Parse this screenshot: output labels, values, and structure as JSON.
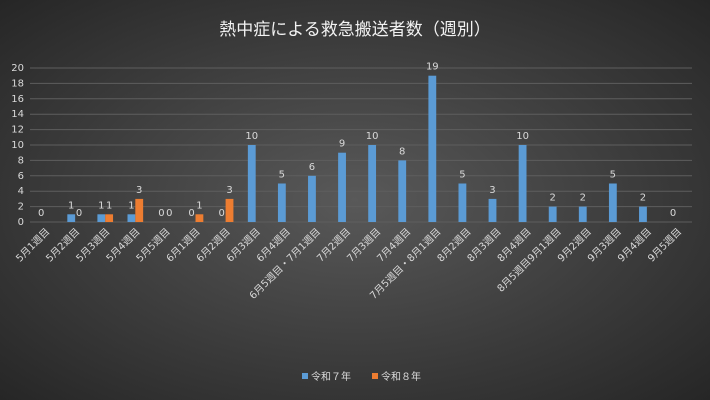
{
  "chart_data": {
    "type": "bar",
    "title": "熱中症による救急搬送者数（週別）",
    "categories": [
      "5月1週目",
      "5月2週目",
      "5月3週目",
      "5月4週目",
      "5月5週目",
      "6月1週目",
      "6月2週目",
      "6月3週目",
      "6月4週目",
      "6月5週目・7月1週目",
      "7月2週目",
      "7月3週目",
      "7月4週目",
      "7月5週目・8月1週目",
      "8月2週目",
      "8月3週目",
      "8月4週目",
      "8月5週目9月1週目",
      "9月2週目",
      "9月3週目",
      "9月4週目",
      "9月5週目"
    ],
    "series": [
      {
        "name": "令和７年",
        "color": "#5b9bd5",
        "values": [
          0,
          1,
          1,
          1,
          0,
          0,
          0,
          10,
          5,
          6,
          9,
          10,
          8,
          19,
          5,
          3,
          10,
          2,
          2,
          5,
          2,
          0
        ]
      },
      {
        "name": "令和８年",
        "color": "#ed7d31",
        "values": [
          null,
          0,
          1,
          3,
          0,
          1,
          3,
          null,
          null,
          null,
          null,
          null,
          null,
          null,
          null,
          null,
          null,
          null,
          null,
          null,
          null,
          null
        ]
      }
    ],
    "ylim": [
      0,
      20
    ],
    "yticks": [
      0,
      2,
      4,
      6,
      8,
      10,
      12,
      14,
      16,
      18,
      20
    ],
    "grid": true,
    "legend": "bottom"
  }
}
